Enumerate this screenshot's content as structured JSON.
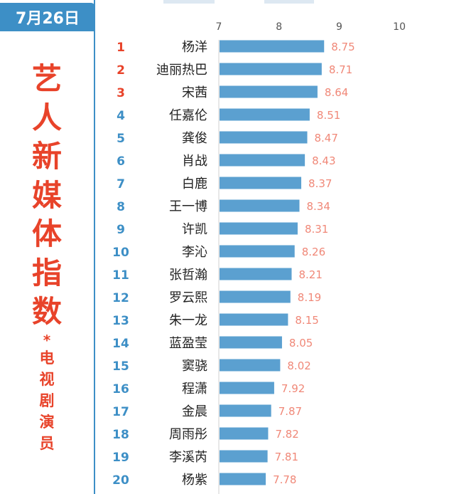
{
  "date_tab": "7月26日",
  "title_chars": [
    "艺",
    "人",
    "新",
    "媒",
    "体",
    "指",
    "数"
  ],
  "separator": "*",
  "subtitle_chars": [
    "电",
    "视",
    "剧",
    "演",
    "员"
  ],
  "colors": {
    "accent_blue": "#3d8fc6",
    "title_red": "#e8432a",
    "bar": "#5ba0d0",
    "value_label": "#f08878",
    "rank_red": "#e8432a",
    "rank_blue": "#3d8fc6"
  },
  "chart_data": {
    "type": "bar",
    "orientation": "horizontal",
    "xlim": [
      7,
      10
    ],
    "xticks": [
      "7",
      "8",
      "9",
      "10"
    ],
    "ranks": [
      "1",
      "2",
      "3",
      "4",
      "5",
      "6",
      "7",
      "8",
      "9",
      "10",
      "11",
      "12",
      "13",
      "14",
      "15",
      "16",
      "17",
      "18",
      "19",
      "20"
    ],
    "categories": [
      "杨洋",
      "迪丽热巴",
      "宋茜",
      "任嘉伦",
      "龚俊",
      "肖战",
      "白鹿",
      "王一博",
      "许凯",
      "李沁",
      "张哲瀚",
      "罗云熙",
      "朱一龙",
      "蓝盈莹",
      "窦骁",
      "程潇",
      "金晨",
      "周雨彤",
      "李溪芮",
      "杨紫"
    ],
    "values": [
      8.75,
      8.71,
      8.64,
      8.51,
      8.47,
      8.43,
      8.37,
      8.34,
      8.31,
      8.26,
      8.21,
      8.19,
      8.15,
      8.05,
      8.02,
      7.92,
      7.87,
      7.82,
      7.81,
      7.78
    ],
    "value_labels": [
      "8.75",
      "8.71",
      "8.64",
      "8.51",
      "8.47",
      "8.43",
      "8.37",
      "8.34",
      "8.31",
      "8.26",
      "8.21",
      "8.19",
      "8.15",
      "8.05",
      "8.02",
      "7.92",
      "7.87",
      "7.82",
      "7.81",
      "7.78"
    ],
    "grid": false
  }
}
